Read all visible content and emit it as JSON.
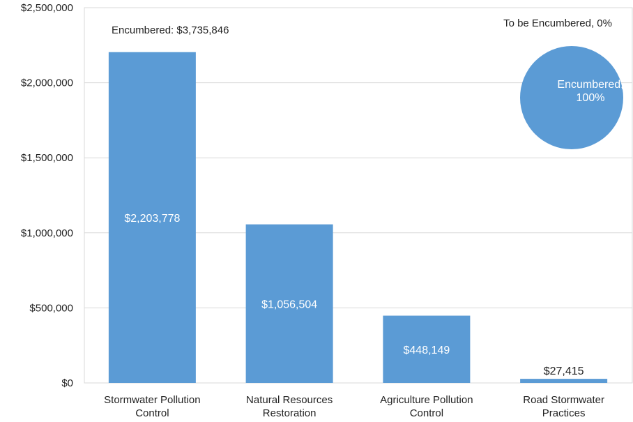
{
  "chart_data": [
    {
      "type": "bar",
      "categories": [
        [
          "Stormwater Pollution",
          "Control"
        ],
        [
          "Natural Resources",
          "Restoration"
        ],
        [
          "Agriculture Pollution",
          "Control"
        ],
        [
          "Road Stormwater",
          "Practices"
        ]
      ],
      "values": [
        2203778,
        1056504,
        448149,
        27415
      ],
      "data_labels": [
        "$2,203,778",
        "$1,056,504",
        "$448,149",
        "$27,415"
      ],
      "ylim": [
        0,
        2500000
      ],
      "yticks": [
        0,
        500000,
        1000000,
        1500000,
        2000000,
        2500000
      ],
      "ytick_labels": [
        "$0",
        "$500,000",
        "$1,000,000",
        "$1,500,000",
        "$2,000,000",
        "$2,500,000"
      ],
      "grid": true,
      "bar_color": "#5b9bd5",
      "annotation": "Encumbered: $3,735,846"
    },
    {
      "type": "pie",
      "slices": [
        {
          "label": "Encumbered",
          "value": 100,
          "display": [
            "Encumbered,",
            "100%"
          ]
        },
        {
          "label": "To be Encumbered",
          "value": 0,
          "display": [
            "To be Encumbered, 0%"
          ]
        }
      ],
      "color": "#5b9bd5"
    }
  ]
}
